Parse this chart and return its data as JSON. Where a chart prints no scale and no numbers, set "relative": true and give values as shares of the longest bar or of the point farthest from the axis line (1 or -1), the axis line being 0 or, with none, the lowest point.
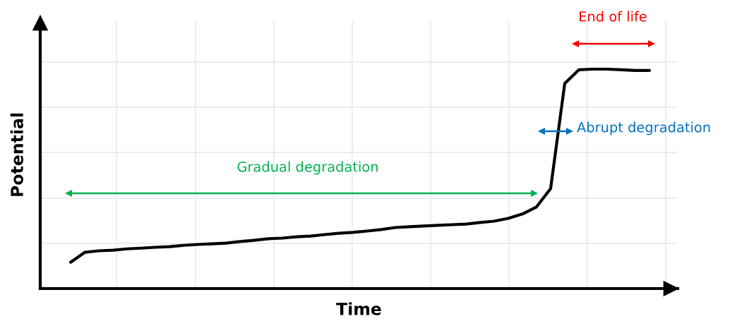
{
  "chart_data": {
    "type": "line",
    "relative": true,
    "xlabel": "Time",
    "ylabel": "Potential",
    "grid": true,
    "categories": [
      null,
      null,
      null,
      null,
      null,
      null,
      null,
      null,
      null,
      null,
      null,
      null,
      null,
      null,
      null,
      null,
      null,
      null,
      null,
      null,
      null,
      null,
      null,
      null,
      null,
      null,
      null,
      null,
      null,
      null,
      null,
      null,
      null,
      null,
      null,
      null,
      null,
      null,
      null,
      null,
      null,
      null
    ],
    "series": [
      {
        "color": "#000000",
        "values": [
          0.12,
          0.165,
          0.172,
          0.175,
          0.181,
          0.184,
          0.188,
          0.191,
          0.197,
          0.201,
          0.204,
          0.207,
          0.214,
          0.22,
          0.227,
          0.23,
          0.236,
          0.239,
          0.246,
          0.252,
          0.256,
          0.262,
          0.269,
          0.278,
          0.282,
          0.285,
          0.288,
          0.291,
          0.294,
          0.301,
          0.307,
          0.32,
          0.34,
          0.372,
          0.456,
          0.935,
          0.997,
          1.0,
          1.0,
          0.997,
          0.994,
          0.994
        ]
      }
    ],
    "annotations": [
      "Gradual degradation",
      "Abrupt degradation",
      "End of life"
    ]
  }
}
